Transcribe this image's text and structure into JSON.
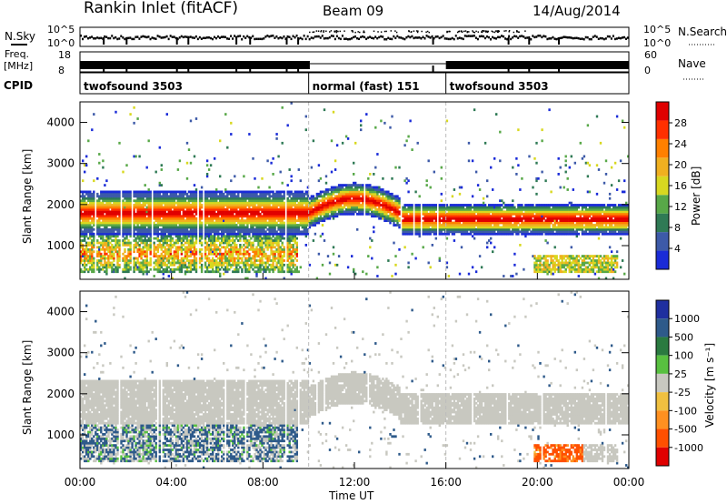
{
  "header": {
    "title": "Rankin Inlet (fitACF)",
    "beam": "Beam 09",
    "date": "14/Aug/2014"
  },
  "noise_panel": {
    "left_label": "N.Sky",
    "right_label": "N.Search",
    "left_ticks": [
      "10^5",
      "10^0"
    ],
    "right_ticks": [
      "10^5",
      "10^0"
    ]
  },
  "freq_panel": {
    "left_label_1": "Freq.",
    "left_label_2": "[MHz]",
    "right_label": "Nave",
    "left_ticks": [
      "18",
      "8"
    ],
    "right_ticks": [
      "60",
      "0"
    ]
  },
  "cpid_panel": {
    "label": "CPID",
    "segments": [
      {
        "text": "twofsound 3503",
        "start_hour": 0,
        "end_hour": 10
      },
      {
        "text": "normal (fast) 151",
        "start_hour": 10,
        "end_hour": 16
      },
      {
        "text": "twofsound 3503",
        "start_hour": 16,
        "end_hour": 24
      }
    ]
  },
  "chart_data": [
    {
      "type": "heatmap",
      "title": "",
      "xlabel": "",
      "ylabel": "Slant Range [km]",
      "xlim": [
        0,
        24
      ],
      "ylim": [
        180,
        4500
      ],
      "yticks": [
        "1000",
        "2000",
        "3000",
        "4000"
      ],
      "colorbar": {
        "label": "Power [dB]",
        "ticks": [
          "4",
          "8",
          "12",
          "16",
          "20",
          "24",
          "28"
        ],
        "colors": [
          "#1a2bd8",
          "#3d5aa8",
          "#2f7a55",
          "#58a848",
          "#d8d820",
          "#f0b020",
          "#ff8000",
          "#ff3000",
          "#e00000"
        ]
      },
      "bands": [
        {
          "label": "main band",
          "start_hour": 0,
          "end_hour": 24,
          "range_km": [
            1200,
            2300
          ],
          "peak_db": 28
        },
        {
          "label": "lower band",
          "start_hour": 0,
          "end_hour": 9.5,
          "range_km": [
            400,
            1200
          ],
          "peak_db": 28
        },
        {
          "label": "late lower band",
          "start_hour": 20,
          "end_hour": 24,
          "range_km": [
            400,
            800
          ],
          "peak_db": 16
        }
      ]
    },
    {
      "type": "heatmap",
      "title": "",
      "xlabel": "Time UT",
      "ylabel": "Slant Range [km]",
      "xlim": [
        0,
        24
      ],
      "ylim": [
        180,
        4500
      ],
      "xticks": [
        "00:00",
        "04:00",
        "08:00",
        "12:00",
        "16:00",
        "20:00",
        "00:00"
      ],
      "yticks": [
        "1000",
        "2000",
        "3000",
        "4000"
      ],
      "colorbar": {
        "label": "Velocity [m s⁻¹]",
        "ticks": [
          "1000",
          "500",
          "100",
          "25",
          "-25",
          "-100",
          "-500",
          "-1000"
        ],
        "colors": [
          "#1f2f9f",
          "#2e5a8a",
          "#2a7a40",
          "#58c040",
          "#c8c8c0",
          "#f0c040",
          "#ff9020",
          "#ff5000",
          "#e00000"
        ]
      },
      "bands": [
        {
          "label": "ground scatter",
          "start_hour": 0,
          "end_hour": 24,
          "range_km": [
            1200,
            2500
          ],
          "velocity": 0
        },
        {
          "label": "positive flow",
          "start_hour": 0,
          "end_hour": 6,
          "range_km": [
            500,
            1200
          ],
          "velocity": 500
        },
        {
          "label": "negative flow",
          "start_hour": 20,
          "end_hour": 22,
          "range_km": [
            300,
            600
          ],
          "velocity": -500
        }
      ]
    }
  ]
}
